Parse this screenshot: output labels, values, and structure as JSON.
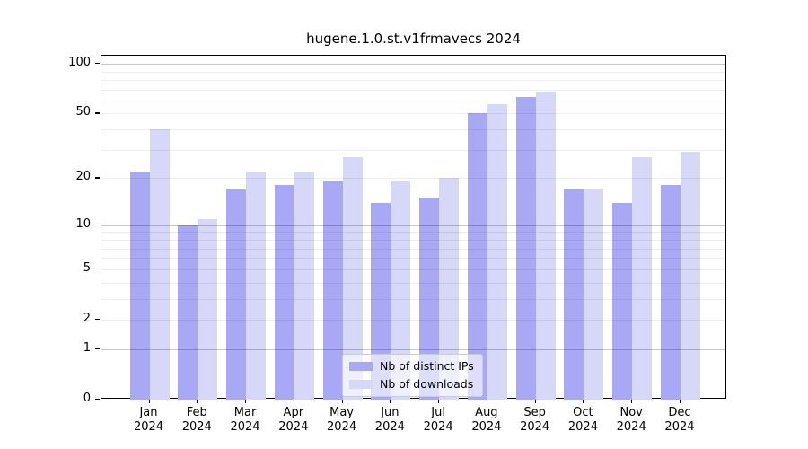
{
  "chart_data": {
    "type": "bar",
    "title": "hugene.1.0.st.v1frmavecs 2024",
    "categories": [
      "Jan",
      "Feb",
      "Mar",
      "Apr",
      "May",
      "Jun",
      "Jul",
      "Aug",
      "Sep",
      "Oct",
      "Nov",
      "Dec"
    ],
    "category_year": "2024",
    "series": [
      {
        "name": "Nb of distinct IPs",
        "color": "#a8a8f4",
        "values": [
          22,
          10,
          17,
          18,
          19,
          14,
          15,
          50,
          63,
          17,
          14,
          18
        ]
      },
      {
        "name": "Nb of downloads",
        "color": "#d7d7f7",
        "values": [
          40,
          11,
          22,
          22,
          27,
          19,
          20,
          57,
          68,
          17,
          27,
          29
        ]
      }
    ],
    "yscale": "log1p",
    "ylim": [
      0,
      112
    ],
    "yticks": [
      0,
      1,
      2,
      5,
      10,
      20,
      50,
      100
    ],
    "major_gridlines": [
      1,
      10,
      100
    ],
    "minor_gridlines": [
      2,
      3,
      4,
      5,
      6,
      7,
      8,
      9,
      20,
      30,
      40,
      50,
      60,
      70,
      80,
      90
    ],
    "grid": true,
    "legend_position": "bottom-center",
    "xlabel": "",
    "ylabel": ""
  }
}
